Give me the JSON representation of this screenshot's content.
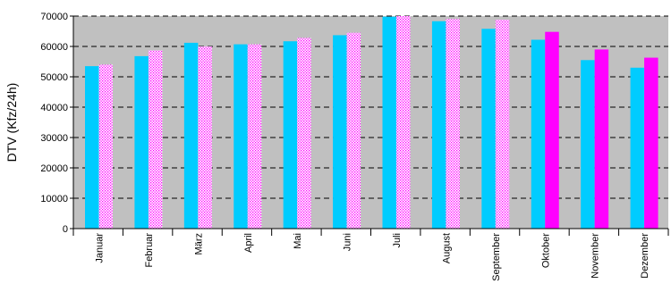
{
  "chart_data": {
    "type": "bar",
    "title": "",
    "xlabel": "",
    "ylabel": "DTV (Kfz/24h)",
    "ylim": [
      0,
      70000
    ],
    "yticks": [
      0,
      10000,
      20000,
      30000,
      40000,
      50000,
      60000,
      70000
    ],
    "grid": "horizontal-dashed",
    "plot_background": "#c0c0c0",
    "categories": [
      "Januar",
      "Februar",
      "März",
      "April",
      "Mai",
      "Juni",
      "Juli",
      "August",
      "September",
      "Oktober",
      "November",
      "Dezember"
    ],
    "series": [
      {
        "color": "#00ccff",
        "fill": "solid",
        "values": [
          53500,
          56800,
          61200,
          60700,
          61700,
          63700,
          69800,
          68300,
          65800,
          62200,
          55500,
          53000
        ]
      },
      {
        "color": "#ff00ff",
        "fill": "dotted",
        "values": [
          54000,
          58700,
          60000,
          60700,
          62800,
          64500,
          70000,
          69000,
          68800,
          null,
          null,
          null
        ]
      },
      {
        "color": "#ff00ff",
        "fill": "solid",
        "values": [
          null,
          null,
          null,
          null,
          null,
          null,
          null,
          null,
          null,
          64800,
          59000,
          56300
        ]
      }
    ]
  }
}
